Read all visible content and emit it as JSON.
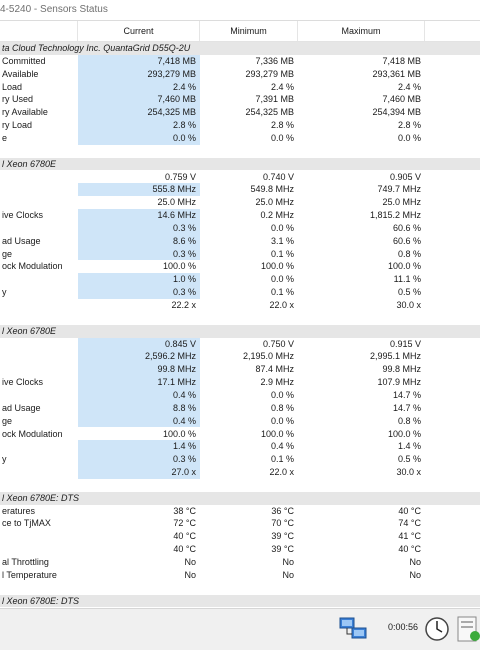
{
  "window": {
    "title": "4-5240 - Sensors Status"
  },
  "table": {
    "columns": [
      "Current",
      "Minimum",
      "Maximum"
    ],
    "groups": [
      {
        "label": "ta Cloud Technology Inc. QuantaGrid D55Q-2U",
        "rows": [
          {
            "label": "Committed",
            "values": [
              "7,418 MB",
              "7,336 MB",
              "7,418 MB"
            ],
            "highlighted": true
          },
          {
            "label": "Available",
            "values": [
              "293,279 MB",
              "293,279 MB",
              "293,361 MB"
            ],
            "highlighted": true
          },
          {
            "label": "Load",
            "values": [
              "2.4 %",
              "2.4 %",
              "2.4 %"
            ],
            "highlighted": true
          },
          {
            "label": "ry Used",
            "values": [
              "7,460 MB",
              "7,391 MB",
              "7,460 MB"
            ],
            "highlighted": true
          },
          {
            "label": "ry Available",
            "values": [
              "254,325 MB",
              "254,325 MB",
              "254,394 MB"
            ],
            "highlighted": true
          },
          {
            "label": "ry Load",
            "values": [
              "2.8 %",
              "2.8 %",
              "2.8 %"
            ],
            "highlighted": true
          },
          {
            "label": "e",
            "values": [
              "0.0 %",
              "0.0 %",
              "0.0 %"
            ],
            "highlighted": true
          }
        ]
      },
      {
        "label": "l Xeon 6780E",
        "rows": [
          {
            "label": null,
            "values": [
              "0.759 V",
              "0.740 V",
              "0.905 V"
            ],
            "highlighted": false
          },
          {
            "label": null,
            "values": [
              "555.8 MHz",
              "549.8 MHz",
              "749.7 MHz"
            ],
            "highlighted": true
          },
          {
            "label": null,
            "values": [
              "25.0 MHz",
              "25.0 MHz",
              "25.0 MHz"
            ],
            "highlighted": false
          },
          {
            "label": "ive Clocks",
            "values": [
              "14.6 MHz",
              "0.2 MHz",
              "1,815.2 MHz"
            ],
            "highlighted": true
          },
          {
            "label": null,
            "values": [
              "0.3 %",
              "0.0 %",
              "60.6 %"
            ],
            "highlighted": true
          },
          {
            "label": "ad Usage",
            "values": [
              "8.6 %",
              "3.1 %",
              "60.6 %"
            ],
            "highlighted": true
          },
          {
            "label": "ge",
            "values": [
              "0.3 %",
              "0.1 %",
              "0.8 %"
            ],
            "highlighted": true
          },
          {
            "label": "ock Modulation",
            "values": [
              "100.0 %",
              "100.0 %",
              "100.0 %"
            ],
            "highlighted": false
          },
          {
            "label": null,
            "values": [
              "1.0 %",
              "0.0 %",
              "11.1 %"
            ],
            "highlighted": true
          },
          {
            "label": "y",
            "values": [
              "0.3 %",
              "0.1 %",
              "0.5 %"
            ],
            "highlighted": true
          },
          {
            "label": null,
            "values": [
              "22.2 x",
              "22.0 x",
              "30.0 x"
            ],
            "highlighted": false
          }
        ]
      },
      {
        "label": "l Xeon 6780E",
        "rows": [
          {
            "label": null,
            "values": [
              "0.845 V",
              "0.750 V",
              "0.915 V"
            ],
            "highlighted": true
          },
          {
            "label": null,
            "values": [
              "2,596.2 MHz",
              "2,195.0 MHz",
              "2,995.1 MHz"
            ],
            "highlighted": true
          },
          {
            "label": null,
            "values": [
              "99.8 MHz",
              "87.4 MHz",
              "99.8 MHz"
            ],
            "highlighted": true
          },
          {
            "label": "ive Clocks",
            "values": [
              "17.1 MHz",
              "2.9 MHz",
              "107.9 MHz"
            ],
            "highlighted": true
          },
          {
            "label": null,
            "values": [
              "0.4 %",
              "0.0 %",
              "14.7 %"
            ],
            "highlighted": true
          },
          {
            "label": "ad Usage",
            "values": [
              "8.8 %",
              "0.8 %",
              "14.7 %"
            ],
            "highlighted": true
          },
          {
            "label": "ge",
            "values": [
              "0.4 %",
              "0.0 %",
              "0.8 %"
            ],
            "highlighted": true
          },
          {
            "label": "ock Modulation",
            "values": [
              "100.0 %",
              "100.0 %",
              "100.0 %"
            ],
            "highlighted": false
          },
          {
            "label": null,
            "values": [
              "1.4 %",
              "0.4 %",
              "1.4 %"
            ],
            "highlighted": true
          },
          {
            "label": "y",
            "values": [
              "0.3 %",
              "0.1 %",
              "0.5 %"
            ],
            "highlighted": true
          },
          {
            "label": null,
            "values": [
              "27.0 x",
              "22.0 x",
              "30.0 x"
            ],
            "highlighted": true
          }
        ]
      },
      {
        "label": "l Xeon 6780E: DTS",
        "rows": [
          {
            "label": "eratures",
            "values": [
              "38 °C",
              "36 °C",
              "40 °C"
            ],
            "highlighted": false
          },
          {
            "label": "ce to TjMAX",
            "values": [
              "72 °C",
              "70 °C",
              "74 °C"
            ],
            "highlighted": false
          },
          {
            "label": null,
            "values": [
              "40 °C",
              "39 °C",
              "41 °C"
            ],
            "highlighted": false
          },
          {
            "label": null,
            "values": [
              "40 °C",
              "39 °C",
              "40 °C"
            ],
            "highlighted": false
          },
          {
            "label": "al Throttling",
            "values": [
              "No",
              "No",
              "No"
            ],
            "highlighted": false
          },
          {
            "label": "l Temperature",
            "values": [
              "No",
              "No",
              "No"
            ],
            "highlighted": false
          }
        ]
      },
      {
        "label": "l Xeon 6780E: DTS",
        "rows": []
      }
    ]
  },
  "footer": {
    "timer": "0:00:56"
  }
}
